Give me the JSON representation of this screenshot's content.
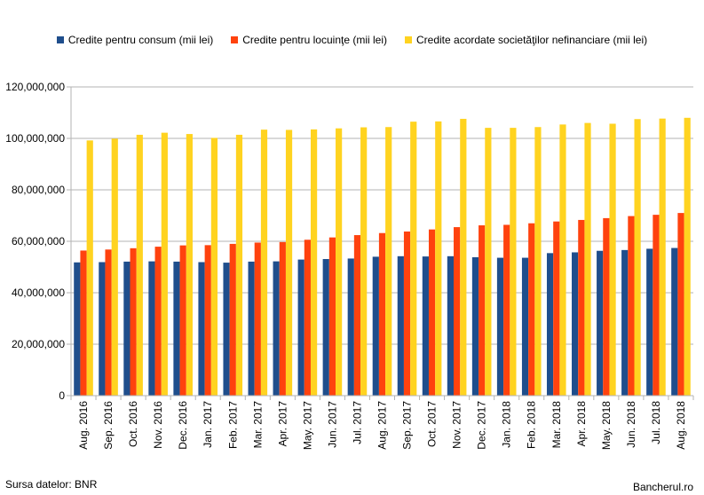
{
  "chart_data": {
    "type": "bar",
    "categories": [
      "Aug. 2016",
      "Sep. 2016",
      "Oct. 2016",
      "Nov. 2016",
      "Dec. 2016",
      "Jan. 2017",
      "Feb. 2017",
      "Mar. 2017",
      "Apr. 2017",
      "May. 2017",
      "Jun. 2017",
      "Jul. 2017",
      "Aug. 2017",
      "Sep. 2017",
      "Oct. 2017",
      "Nov. 2017",
      "Dec. 2017",
      "Jan. 2018",
      "Feb. 2018",
      "Mar. 2018",
      "Apr. 2018",
      "May. 2018",
      "Jun. 2018",
      "Jul. 2018",
      "Aug. 2018"
    ],
    "series": [
      {
        "name": "Credite pentru consum (mii lei)",
        "color": "#1f4e8c",
        "values": [
          51800000,
          51900000,
          52100000,
          52200000,
          52100000,
          51900000,
          51700000,
          52100000,
          52200000,
          52900000,
          53100000,
          53300000,
          54000000,
          54200000,
          54100000,
          54200000,
          53800000,
          53600000,
          53600000,
          55400000,
          55700000,
          56300000,
          56600000,
          57100000,
          57400000
        ]
      },
      {
        "name": "Credite pentru locuinţe (mii lei)",
        "color": "#ff420e",
        "values": [
          56400000,
          56800000,
          57300000,
          57900000,
          58400000,
          58500000,
          59000000,
          59500000,
          59700000,
          60600000,
          61500000,
          62400000,
          63200000,
          63800000,
          64600000,
          65500000,
          66200000,
          66400000,
          67000000,
          67700000,
          68300000,
          69000000,
          69800000,
          70300000,
          71000000
        ]
      },
      {
        "name": "Credite acordate societăţilor nefinanciare (mii lei)",
        "color": "#ffd320",
        "values": [
          99200000,
          99900000,
          101400000,
          102200000,
          101700000,
          100200000,
          101400000,
          103400000,
          103300000,
          103500000,
          103900000,
          104300000,
          104400000,
          106500000,
          106600000,
          107600000,
          104100000,
          104100000,
          104400000,
          105400000,
          106000000,
          105700000,
          107500000,
          107700000,
          108000000
        ]
      }
    ],
    "y_ticks": [
      "0",
      "20,000,000",
      "40,000,000",
      "60,000,000",
      "80,000,000",
      "100,000,000",
      "120,000,000"
    ],
    "ylim": [
      0,
      120000000
    ],
    "grid": true,
    "legend_position": "top"
  },
  "footer": {
    "source": "Sursa datelor: BNR",
    "brand": "Bancherul.ro"
  }
}
